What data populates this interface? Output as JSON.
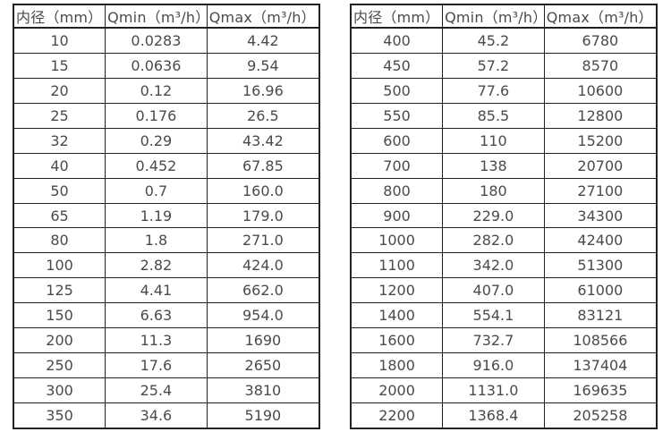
{
  "page": {
    "background": "#ffffff",
    "text_color": "#4a4a4a",
    "border_color": "#212121"
  },
  "tables": {
    "left": {
      "headers": [
        "内径（mm）",
        "Qmin（m³/h）",
        "Qmax（m³/h）"
      ],
      "rows": [
        [
          "10",
          "0.0283",
          "4.42"
        ],
        [
          "15",
          "0.0636",
          "9.54"
        ],
        [
          "20",
          "0.12",
          "16.96"
        ],
        [
          "25",
          "0.176",
          "26.5"
        ],
        [
          "32",
          "0.29",
          "43.42"
        ],
        [
          "40",
          "0.452",
          "67.85"
        ],
        [
          "50",
          "0.7",
          "160.0"
        ],
        [
          "65",
          "1.19",
          "179.0"
        ],
        [
          "80",
          "1.8",
          "271.0"
        ],
        [
          "100",
          "2.82",
          "424.0"
        ],
        [
          "125",
          "4.41",
          "662.0"
        ],
        [
          "150",
          "6.63",
          "954.0"
        ],
        [
          "200",
          "11.3",
          "1690"
        ],
        [
          "250",
          "17.6",
          "2650"
        ],
        [
          "300",
          "25.4",
          "3810"
        ],
        [
          "350",
          "34.6",
          "5190"
        ]
      ]
    },
    "right": {
      "headers": [
        "内径（mm）",
        "Qmin（m³/h）",
        "Qmax（m³/h）"
      ],
      "rows": [
        [
          "400",
          "45.2",
          "6780"
        ],
        [
          "450",
          "57.2",
          "8570"
        ],
        [
          "500",
          "77.6",
          "10600"
        ],
        [
          "550",
          "85.5",
          "12800"
        ],
        [
          "600",
          "110",
          "15200"
        ],
        [
          "700",
          "138",
          "20700"
        ],
        [
          "800",
          "180",
          "27100"
        ],
        [
          "900",
          "229.0",
          "34300"
        ],
        [
          "1000",
          "282.0",
          "42400"
        ],
        [
          "1100",
          "342.0",
          "51300"
        ],
        [
          "1200",
          "407.0",
          "61000"
        ],
        [
          "1400",
          "554.1",
          "83121"
        ],
        [
          "1600",
          "732.7",
          "108566"
        ],
        [
          "1800",
          "916.0",
          "137404"
        ],
        [
          "2000",
          "1131.0",
          "169635"
        ],
        [
          "2200",
          "1368.4",
          "205258"
        ]
      ]
    }
  }
}
